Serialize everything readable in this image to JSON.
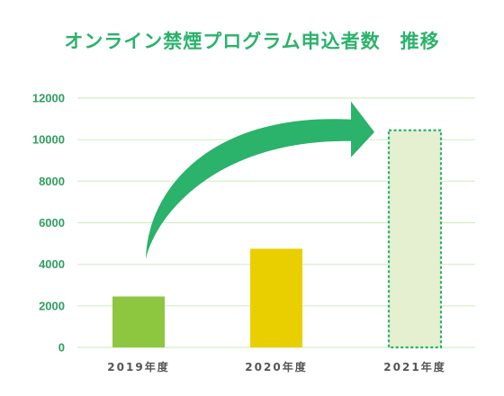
{
  "chart_data": {
    "type": "bar",
    "title": "オンライン禁煙プログラム申込者数　推移",
    "categories": [
      "2019年度",
      "2020年度",
      "2021年度"
    ],
    "values": [
      2450,
      4750,
      10450
    ],
    "ylim": [
      0,
      12000
    ],
    "yticks": [
      0,
      2000,
      4000,
      6000,
      8000,
      10000,
      12000
    ],
    "grid": true,
    "bar_colors": [
      "#8dc63f",
      "#e9cf00",
      "#e4f0d0"
    ],
    "last_bar_border": "#2bb26b",
    "grid_color": "#d4edc4",
    "tick_label_color": "#2f9e5f",
    "arrow_color": "#2bb26b",
    "arrow_from": "2019年度",
    "arrow_to": "2021年度"
  }
}
